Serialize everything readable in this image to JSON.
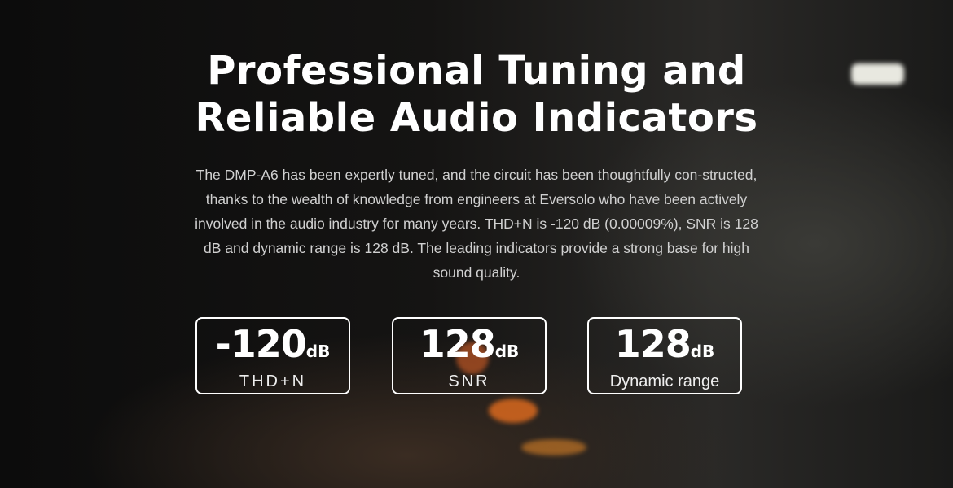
{
  "hero": {
    "title_line1": "Professional Tuning and",
    "title_line2": "Reliable Audio Indicators",
    "description": "The DMP-A6 has been expertly tuned, and the circuit has been thoughtfully con-structed, thanks to the wealth of knowledge from engineers at Eversolo who have been actively involved in the audio industry for many years. THD+N is -120 dB (0.00009%), SNR is 128 dB and dynamic range is 128 dB. The leading indicators provide a strong base for high sound quality."
  },
  "indicators": [
    {
      "value": "-120",
      "unit": "dB",
      "label": "THD+N"
    },
    {
      "value": "128",
      "unit": "dB",
      "label": "SNR"
    },
    {
      "value": "128",
      "unit": "dB",
      "label": "Dynamic range"
    }
  ]
}
